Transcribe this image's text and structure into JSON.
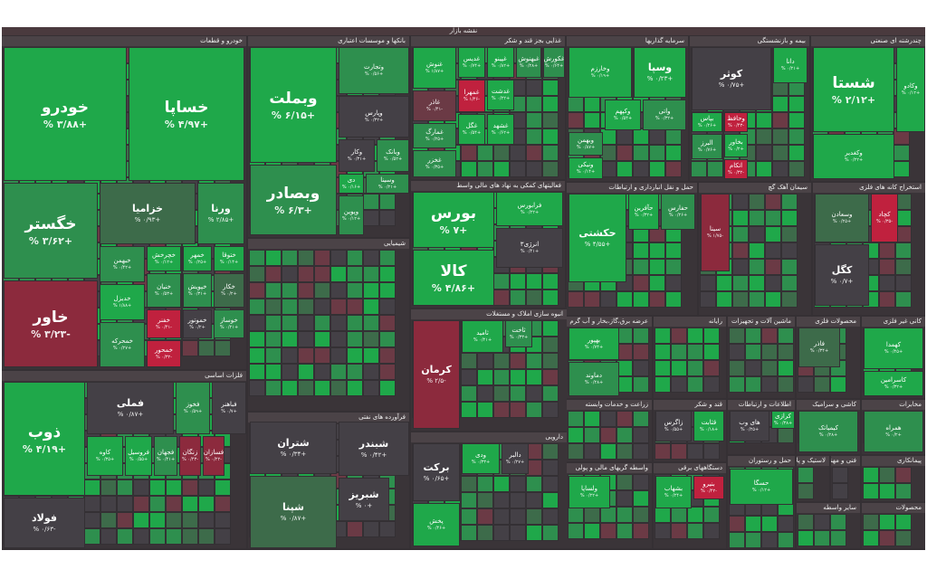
{
  "map_title": "نقشه بازار",
  "sectors": [
    {
      "key": "auto",
      "name": "خودرو و قطعات"
    },
    {
      "key": "banks",
      "name": "بانکها و موسسات اعتباری"
    },
    {
      "key": "food",
      "name": "غذایی بجز قند و شکر"
    },
    {
      "key": "invest",
      "name": "سرمایه گذاریها"
    },
    {
      "key": "insurance",
      "name": "بیمه و بازنشستگی"
    },
    {
      "key": "refinery",
      "name": "چندرشته ای صنعتی"
    },
    {
      "key": "metals",
      "name": "فلزات اساسی"
    },
    {
      "key": "chem",
      "name": "شیمیایی"
    },
    {
      "key": "financial",
      "name": "فعالیتهای کمکی به نهاد های مالی واسط"
    },
    {
      "key": "transport",
      "name": "حمل و نقل انبارداری و ارتباطات"
    },
    {
      "key": "cement",
      "name": "سیمان آهک گچ"
    },
    {
      "key": "ore",
      "name": "استخراج کانه های فلزی"
    },
    {
      "key": "oil",
      "name": "فرآورده های نفتی"
    },
    {
      "key": "realestate",
      "name": "انبوه سازی املاک و مستغلات"
    },
    {
      "key": "utility",
      "name": "عرضه برق،گاز،بخار و آب گرم"
    },
    {
      "key": "computer",
      "name": "رایانه"
    },
    {
      "key": "machinery",
      "name": "ماشین آلات و تجهیزات"
    },
    {
      "key": "metalproducts",
      "name": "محصولات فلزی"
    },
    {
      "key": "nonmetal",
      "name": "کانی غیر فلزی"
    },
    {
      "key": "pharma",
      "name": "دارویی"
    },
    {
      "key": "agri",
      "name": "زراعت و خدمات وابسته"
    },
    {
      "key": "sugar",
      "name": "قند و شکر"
    },
    {
      "key": "it",
      "name": "اطلاعات و ارتباطات"
    },
    {
      "key": "tile",
      "name": "کاشی و سرامیک"
    },
    {
      "key": "telecom",
      "name": "مخابرات"
    },
    {
      "key": "brokers",
      "name": "واسطه گریهای مالی و پولی"
    },
    {
      "key": "electric",
      "name": "دستگاههای برقی"
    },
    {
      "key": "multi",
      "name": "حمل و رستوران"
    },
    {
      "key": "rubber",
      "name": "لاستیک و پلاستیک"
    },
    {
      "key": "engineering",
      "name": "فنی و مهندسی"
    },
    {
      "key": "other",
      "name": "سایر واسطه"
    },
    {
      "key": "pipeline",
      "name": "پیمانکاری"
    },
    {
      "key": "products",
      "name": "محصولات"
    }
  ],
  "tiles": [
    {
      "sym": "خودرو",
      "pct": "+۳/۸۸ %",
      "c": "g3",
      "sz": "big"
    },
    {
      "sym": "خساپا",
      "pct": "+۴/۹۷ %",
      "c": "g3",
      "sz": "big"
    },
    {
      "sym": "خگستر",
      "pct": "+۳/۶۲ %",
      "c": "g2",
      "sz": "big"
    },
    {
      "sym": "خزامیا",
      "pct": "+۰/۹۳ %",
      "c": "g1",
      "sz": "mid"
    },
    {
      "sym": "ورنا",
      "pct": "+۲/۸۵ %",
      "c": "g2",
      "sz": "mid"
    },
    {
      "sym": "خاور",
      "pct": "-۳/۲۳ %",
      "c": "r2",
      "sz": "big"
    },
    {
      "sym": "خبهمن",
      "pct": "+۰/۴۲ %",
      "c": "g2",
      "sz": ""
    },
    {
      "sym": "خچرخش",
      "pct": "+۰/۱۲ %",
      "c": "g3",
      "sz": ""
    },
    {
      "sym": "خمهر",
      "pct": "+۰/۲۵ %",
      "c": "g3",
      "sz": ""
    },
    {
      "sym": "ختوقا",
      "pct": "+۰/۱۴ %",
      "c": "g3",
      "sz": ""
    },
    {
      "sym": "خدیزل",
      "pct": "+۱/۸۸ %",
      "c": "g3",
      "sz": ""
    },
    {
      "sym": "خنیان",
      "pct": "+۰/۵۳ %",
      "c": "g2",
      "sz": ""
    },
    {
      "sym": "خپویش",
      "pct": "+۰/۳۱ %",
      "c": "g2",
      "sz": ""
    },
    {
      "sym": "خفنر",
      "pct": "-۰/۴۱ %",
      "c": "r3",
      "sz": ""
    },
    {
      "sym": "خموتور",
      "pct": "+۰/۲ %",
      "c": "n",
      "sz": ""
    },
    {
      "sym": "خوساز",
      "pct": "+۰/۲۱ %",
      "c": "g2",
      "sz": ""
    },
    {
      "sym": "خکار",
      "pct": "+۰/۲ %",
      "c": "g1",
      "sz": ""
    },
    {
      "sym": "خمحرکه",
      "pct": "+۰/۲۷ %",
      "c": "g2",
      "sz": ""
    },
    {
      "sym": "خمحور",
      "pct": "-۰/۳۲ %",
      "c": "r3",
      "sz": ""
    },
    {
      "sym": "وبملت",
      "pct": "+۶/۱۵ %",
      "c": "g3",
      "sz": "big"
    },
    {
      "sym": "وتجارت",
      "pct": "+۰/۵۶ %",
      "c": "g2",
      "sz": ""
    },
    {
      "sym": "وپارس",
      "pct": "+۰/۳۲ %",
      "c": "n",
      "sz": ""
    },
    {
      "sym": "وکار",
      "pct": "+۰/۳۱ %",
      "c": "n",
      "sz": ""
    },
    {
      "sym": "وبانک",
      "pct": "+۰/۵۲ %",
      "c": "g2",
      "sz": ""
    },
    {
      "sym": "وبصادر",
      "pct": "+۶/۳ %",
      "c": "g2",
      "sz": "big"
    },
    {
      "sym": "دی",
      "pct": "+۰/۱۶ %",
      "c": "g3",
      "sz": ""
    },
    {
      "sym": "وسینا",
      "pct": "+۰/۲۱ %",
      "c": "g2",
      "sz": ""
    },
    {
      "sym": "وپوین",
      "pct": "+۰/۱۲ %",
      "c": "g2",
      "sz": ""
    },
    {
      "sym": "غنوش",
      "pct": "+۱/۸۷ %",
      "c": "g3",
      "sz": ""
    },
    {
      "sym": "غدیس",
      "pct": "+۰/۷۴ %",
      "c": "g3",
      "sz": ""
    },
    {
      "sym": "غپینو",
      "pct": "+۰/۸۲ %",
      "c": "g3",
      "sz": ""
    },
    {
      "sym": "غبهنوش",
      "pct": "+۰/۲۸ %",
      "c": "g2",
      "sz": ""
    },
    {
      "sym": "غکورش",
      "pct": "+۰/۶۴ %",
      "c": "g2",
      "sz": ""
    },
    {
      "sym": "غگل",
      "pct": "+۰/۵۴ %",
      "c": "g3",
      "sz": ""
    },
    {
      "sym": "غاذر",
      "pct": "-۰/۴۱ %",
      "c": "r1",
      "sz": ""
    },
    {
      "sym": "غمهرا",
      "pct": "-۱/۴۶ %",
      "c": "r3",
      "sz": ""
    },
    {
      "sym": "غدشت",
      "pct": "+۰/۲۲ %",
      "c": "g3",
      "sz": ""
    },
    {
      "sym": "غشهد",
      "pct": "+۰/۶۲ %",
      "c": "g3",
      "sz": ""
    },
    {
      "sym": "غمارگ",
      "pct": "+۰/۲۵ %",
      "c": "g2",
      "sz": ""
    },
    {
      "sym": "غخزر",
      "pct": "+۰/۳۵ %",
      "c": "g2",
      "sz": ""
    },
    {
      "sym": "وخارزم",
      "pct": "+۰/۱۹ %",
      "c": "g3",
      "sz": ""
    },
    {
      "sym": "وسپا",
      "pct": "+۰/۲۳ %",
      "c": "g3",
      "sz": "mid"
    },
    {
      "sym": "وبهمن",
      "pct": "+۰/۸۷ %",
      "c": "g2",
      "sz": ""
    },
    {
      "sym": "وکپهم",
      "pct": "+۰/۵۴ %",
      "c": "g3",
      "sz": ""
    },
    {
      "sym": "واتی",
      "pct": "+۰/۳۲ %",
      "c": "g2",
      "sz": ""
    },
    {
      "sym": "ونیکی",
      "pct": "+۰/۱۴ %",
      "c": "g3",
      "sz": ""
    },
    {
      "sym": "کوثر",
      "pct": "+۰/۷۵ %",
      "c": "n",
      "sz": "mid"
    },
    {
      "sym": "دانا",
      "pct": "+۰/۲۱ %",
      "c": "g3",
      "sz": ""
    },
    {
      "sym": "بپاس",
      "pct": "+۰/۲۶ %",
      "c": "g3",
      "sz": ""
    },
    {
      "sym": "وحافظ",
      "pct": "-۰/۴۳ %",
      "c": "r3",
      "sz": ""
    },
    {
      "sym": "البرز",
      "pct": "+۰/۷۶ %",
      "c": "g2",
      "sz": ""
    },
    {
      "sym": "بخاور",
      "pct": "+۰/۲ %",
      "c": "g3",
      "sz": ""
    },
    {
      "sym": "اتکام",
      "pct": "-۰/۳۲ %",
      "c": "r3",
      "sz": ""
    },
    {
      "sym": "شستا",
      "pct": "+۲/۱۲ %",
      "c": "g3",
      "sz": "big"
    },
    {
      "sym": "وکادو",
      "pct": "+۰/۱۲ %",
      "c": "g3",
      "sz": ""
    },
    {
      "sym": "وکغدیر",
      "pct": "+۰/۲۲ %",
      "c": "g3",
      "sz": ""
    },
    {
      "sym": "ذوب",
      "pct": "+۴/۱۹ %",
      "c": "g3",
      "sz": "big"
    },
    {
      "sym": "فملی",
      "pct": "+۰/۸۷ %",
      "c": "n",
      "sz": "mid"
    },
    {
      "sym": "فخوز",
      "pct": "+۰/۵۹ %",
      "c": "g2",
      "sz": ""
    },
    {
      "sym": "فباهنر",
      "pct": "+۰/۷ %",
      "c": "n",
      "sz": ""
    },
    {
      "sym": "فولاد",
      "pct": "-۰/۶۳ %",
      "c": "n",
      "sz": "mid"
    },
    {
      "sym": "کاوه",
      "pct": "+۰/۳۵ %",
      "c": "g3",
      "sz": ""
    },
    {
      "sym": "فروسیل",
      "pct": "+۰/۵۵ %",
      "c": "g3",
      "sz": ""
    },
    {
      "sym": "فجهان",
      "pct": "+۰/۴۱ %",
      "c": "g2",
      "sz": ""
    },
    {
      "sym": "زنگان",
      "pct": "-۰/۴۳ %",
      "c": "r2",
      "sz": ""
    },
    {
      "sym": "فسازان",
      "pct": "-۰/۲۲ %",
      "c": "r2",
      "sz": ""
    },
    {
      "sym": "شپنا",
      "pct": "+۰/۸۷ %",
      "c": "g1",
      "sz": "mid"
    },
    {
      "sym": "شبندر",
      "pct": "+۰/۴۲ %",
      "c": "n",
      "sz": "mid"
    },
    {
      "sym": "شبریز",
      "pct": "+۰ %",
      "c": "n",
      "sz": "mid"
    },
    {
      "sym": "شتران",
      "pct": "+۰/۳۴ %",
      "c": "n",
      "sz": "mid"
    },
    {
      "sym": "بورس",
      "pct": "+۷ %",
      "c": "g3",
      "sz": "big"
    },
    {
      "sym": "کالا",
      "pct": "+۴/۸۶ %",
      "c": "g3",
      "sz": "big"
    },
    {
      "sym": "فرابورس",
      "pct": "+۰/۲۲ %",
      "c": "g3",
      "sz": ""
    },
    {
      "sym": "انرژی۳",
      "pct": "+۰/۴۱ %",
      "c": "n",
      "sz": ""
    },
    {
      "sym": "حکشتی",
      "pct": "+۴/۵۵ %",
      "c": "g3",
      "sz": "mid"
    },
    {
      "sym": "حفارس",
      "pct": "+۰/۲۶ %",
      "c": "g2",
      "sz": ""
    },
    {
      "sym": "حآفرین",
      "pct": "+۰/۳۲ %",
      "c": "g3",
      "sz": ""
    },
    {
      "sym": "سینا",
      "pct": "-۱/۷۵ %",
      "c": "r2",
      "sz": ""
    },
    {
      "sym": "کرمان",
      "pct": "-۲/۵ %",
      "c": "r2",
      "sz": "mid"
    },
    {
      "sym": "ثامید",
      "pct": "+۰/۴۱ %",
      "c": "g3",
      "sz": ""
    },
    {
      "sym": "ثاخت",
      "pct": "+۰/۳۳ %",
      "c": "g2",
      "sz": ""
    },
    {
      "sym": "بهپور",
      "pct": "+۰/۷۴ %",
      "c": "g3",
      "sz": ""
    },
    {
      "sym": "دماوند",
      "pct": "+۰/۲۸ %",
      "c": "g2",
      "sz": ""
    },
    {
      "sym": "کگل",
      "pct": "+۰/۷ %",
      "c": "n",
      "sz": "mid"
    },
    {
      "sym": "کچاد",
      "pct": "-۰/۳۵ %",
      "c": "r3",
      "sz": ""
    },
    {
      "sym": "وسعادن",
      "pct": "+۰/۲۵ %",
      "c": "g1",
      "sz": ""
    },
    {
      "sym": "فاذر",
      "pct": "+۰/۳۴ %",
      "c": "g1",
      "sz": ""
    },
    {
      "sym": "کهمدا",
      "pct": "+۰/۴۵ %",
      "c": "g3",
      "sz": ""
    },
    {
      "sym": "کاسرامین",
      "pct": "+۰/۳۲ %",
      "c": "g3",
      "sz": ""
    },
    {
      "sym": "برکت",
      "pct": "+۰/۶۵ %",
      "c": "n",
      "sz": "mid"
    },
    {
      "sym": "دالبر",
      "pct": "+۰/۲۷ %",
      "c": "n",
      "sz": ""
    },
    {
      "sym": "پخش",
      "pct": "+۰/۴۶ %",
      "c": "g3",
      "sz": ""
    },
    {
      "sym": "ودی",
      "pct": "+۰/۳۳ %",
      "c": "g3",
      "sz": ""
    },
    {
      "sym": "زاگرس",
      "pct": "+۰/۵۵ %",
      "c": "n",
      "sz": ""
    },
    {
      "sym": "قثابت",
      "pct": "+۰/۱۸ %",
      "c": "g3",
      "sz": ""
    },
    {
      "sym": "های وب",
      "pct": "+۰/۲۵ %",
      "c": "n",
      "sz": ""
    },
    {
      "sym": "همراه",
      "pct": "+۰/۲ %",
      "c": "g2",
      "sz": ""
    },
    {
      "sym": "ولساپا",
      "pct": "+۰/۲۲ %",
      "c": "g3",
      "sz": ""
    },
    {
      "sym": "بشهاب",
      "pct": "+۰/۲۴ %",
      "c": "g3",
      "sz": ""
    },
    {
      "sym": "بنیرو",
      "pct": "-۰/۴۲ %",
      "c": "r3",
      "sz": ""
    },
    {
      "sym": "حسگا",
      "pct": "+۰/۱۲ %",
      "c": "g3",
      "sz": ""
    },
    {
      "sym": "کرازی",
      "pct": "+۰/۳۸ %",
      "c": "g3",
      "sz": ""
    },
    {
      "sym": "کیمیاتک",
      "pct": "+۰/۲۸ %",
      "c": "g2",
      "sz": ""
    }
  ],
  "colors": {
    "strong_up": "#1fa84a",
    "up": "#2e8f4e",
    "slight_up": "#3d6b4a",
    "neutral": "#444046",
    "slight_down": "#6b3a45",
    "down": "#8c2a3d",
    "strong_down": "#c0213e"
  }
}
